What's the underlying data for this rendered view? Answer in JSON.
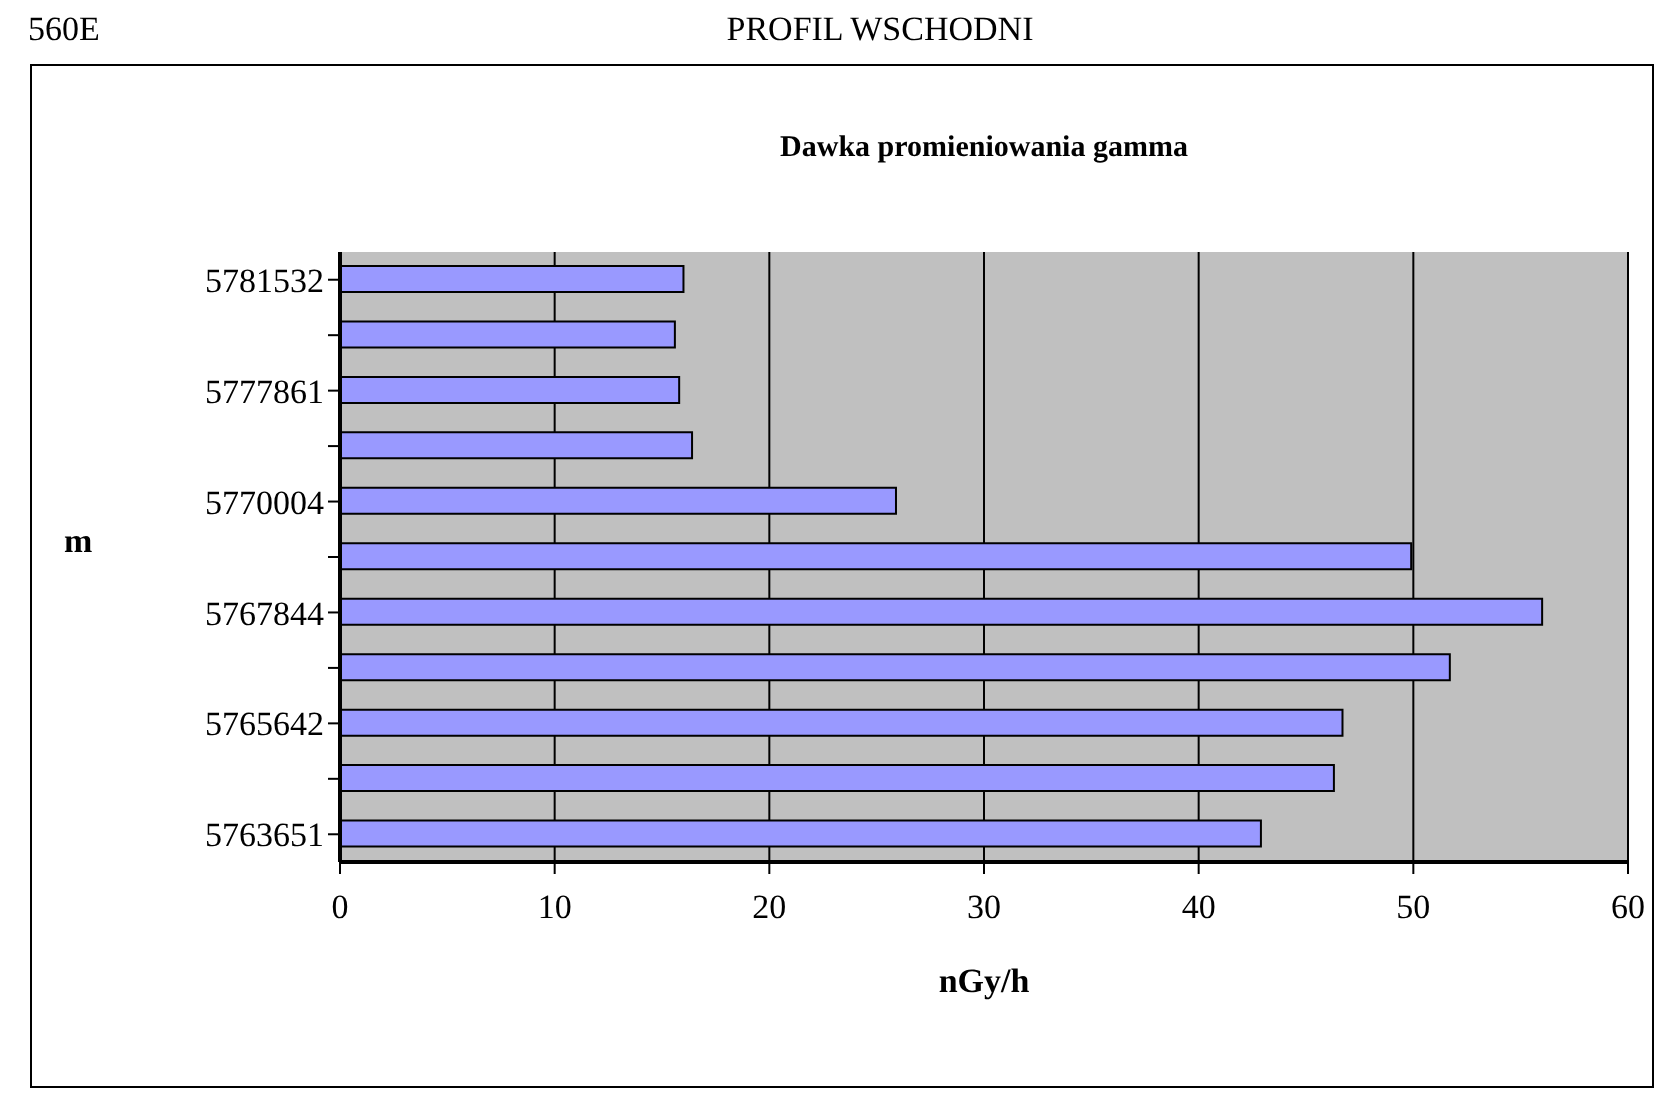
{
  "chart_data": {
    "type": "bar",
    "orientation": "horizontal",
    "title": "Dawka promieniowania gamma",
    "subtitle": "PROFIL WSCHODNI",
    "annotations": [
      "560E"
    ],
    "xlabel": "nGy/h",
    "ylabel": "m",
    "categories": [
      "5781532",
      null,
      "5777861",
      null,
      "5770004",
      null,
      "5767844",
      null,
      "5765642",
      null,
      "5763651"
    ],
    "values": [
      16.0,
      15.6,
      15.8,
      16.4,
      25.9,
      49.9,
      56.0,
      51.7,
      46.7,
      46.3,
      42.9
    ],
    "color": "#9999ff",
    "xlim": [
      0,
      60
    ],
    "xticks": [
      0,
      10,
      20,
      30,
      40,
      50,
      60
    ],
    "grid": "x"
  }
}
